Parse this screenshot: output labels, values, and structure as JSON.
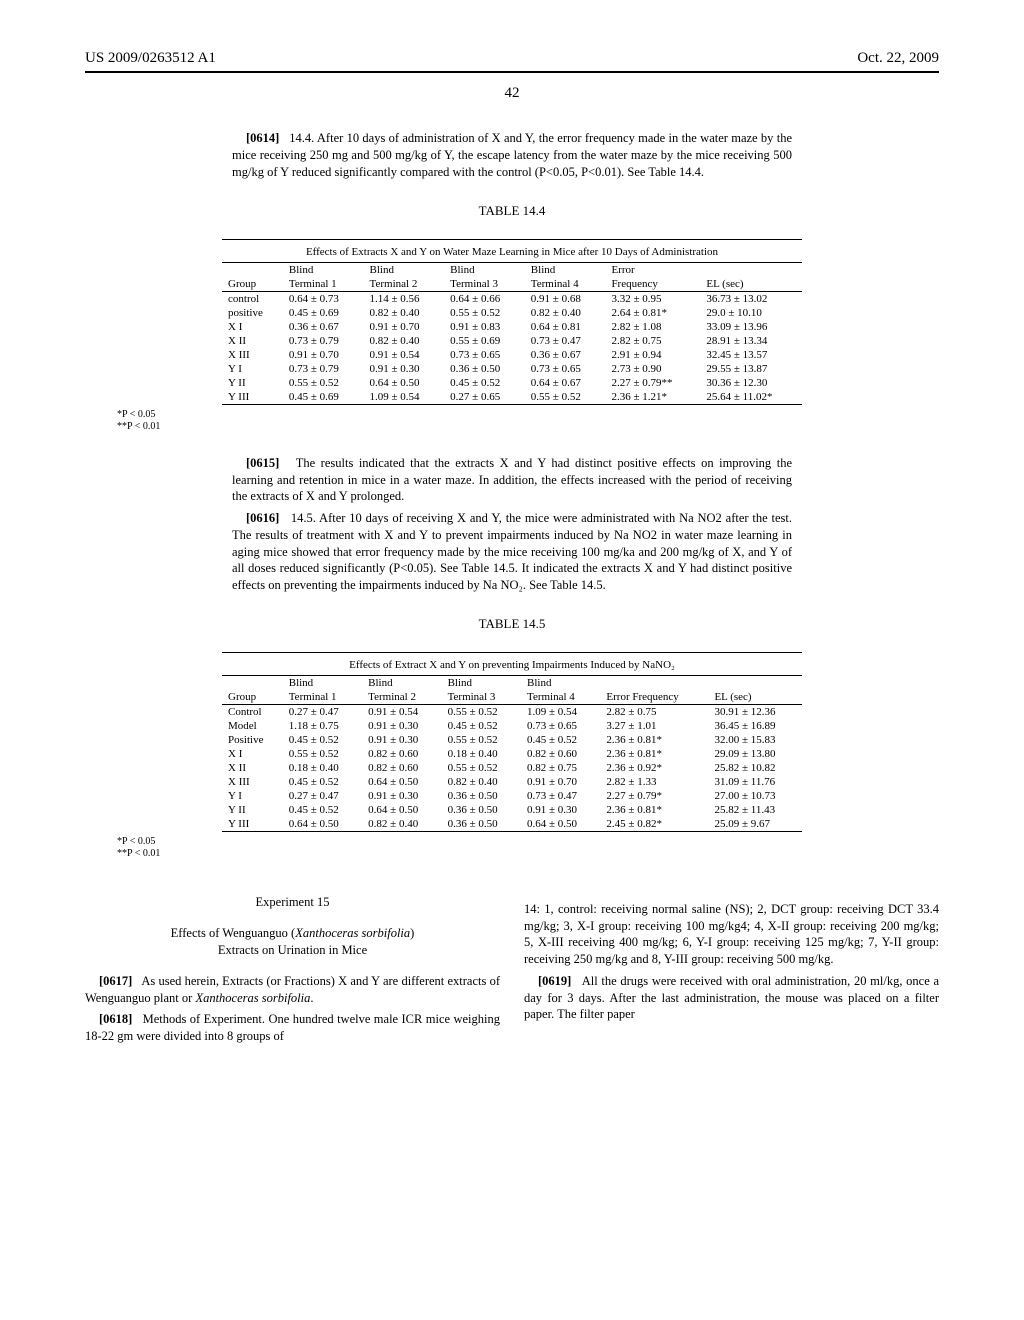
{
  "header": {
    "left": "US 2009/0263512 A1",
    "right": "Oct. 22, 2009"
  },
  "pagenum": "42",
  "para0614": {
    "num": "[0614]",
    "text": "14.4. After 10 days of administration of X and Y, the error frequency made in the water maze by the mice receiving 250 mg and 500 mg/kg of Y, the escape latency from the water maze by the mice receiving 500 mg/kg of Y reduced significantly compared with the control (P<0.05, P<0.01). See Table 14.4."
  },
  "table144": {
    "caption": "TABLE 14.4",
    "title": "Effects of Extracts X and Y on Water Maze Learning in Mice after 10 Days of Administration",
    "columns": [
      "Group",
      "Blind Terminal 1",
      "Blind Terminal 2",
      "Blind Terminal 3",
      "Blind Terminal 4",
      "Error Frequency",
      "EL (sec)"
    ],
    "rows": [
      [
        "control",
        "0.64 ± 0.73",
        "1.14 ± 0.56",
        "0.64 ± 0.66",
        "0.91 ± 0.68",
        "3.32 ± 0.95",
        "36.73 ± 13.02"
      ],
      [
        "positive",
        "0.45 ± 0.69",
        "0.82 ± 0.40",
        "0.55 ± 0.52",
        "0.82 ± 0.40",
        "2.64 ± 0.81*",
        "29.0 ± 10.10"
      ],
      [
        "X I",
        "0.36 ± 0.67",
        "0.91 ± 0.70",
        "0.91 ± 0.83",
        "0.64 ± 0.81",
        "2.82 ± 1.08",
        "33.09 ± 13.96"
      ],
      [
        "X II",
        "0.73 ± 0.79",
        "0.82 ± 0.40",
        "0.55 ± 0.69",
        "0.73 ± 0.47",
        "2.82 ± 0.75",
        "28.91 ± 13.34"
      ],
      [
        "X III",
        "0.91 ± 0.70",
        "0.91 ± 0.54",
        "0.73 ± 0.65",
        "0.36 ± 0.67",
        "2.91 ± 0.94",
        "32.45 ± 13.57"
      ],
      [
        "Y I",
        "0.73 ± 0.79",
        "0.91 ± 0.30",
        "0.36 ± 0.50",
        "0.73 ± 0.65",
        "2.73 ± 0.90",
        "29.55 ± 13.87"
      ],
      [
        "Y II",
        "0.55 ± 0.52",
        "0.64 ± 0.50",
        "0.45 ± 0.52",
        "0.64 ± 0.67",
        "2.27 ± 0.79**",
        "30.36 ± 12.30"
      ],
      [
        "Y III",
        "0.45 ± 0.69",
        "1.09 ± 0.54",
        "0.27 ± 0.65",
        "0.55 ± 0.52",
        "2.36 ± 1.21*",
        "25.64 ± 11.02*"
      ]
    ],
    "footnotes": [
      "*P < 0.05",
      "**P < 0.01"
    ]
  },
  "para0615": {
    "num": "[0615]",
    "text": "The results indicated that the extracts X and Y had distinct positive effects on improving the learning and retention in mice in a water maze. In addition, the effects increased with the period of receiving the extracts of X and Y prolonged."
  },
  "para0616": {
    "num": "[0616]",
    "text": "14.5. After 10 days of receiving X and Y, the mice were administrated with Na NO2 after the test. The results of treatment with X and Y to prevent impairments induced by Na NO2 in water maze learning in aging mice showed that error frequency made by the mice receiving 100 mg/ka and 200 mg/kg of X, and Y of all doses reduced significantly (P<0.05). See Table 14.5. It indicated the extracts X and Y had distinct positive effects on preventing the impairments induced by Na NO₂. See Table 14.5."
  },
  "table145": {
    "caption": "TABLE 14.5",
    "title": "Effects of Extract X and Y on preventing Impairments Induced by NaNO₂",
    "columns": [
      "Group",
      "Blind Terminal 1",
      "Blind Terminal 2",
      "Blind Terminal 3",
      "Blind Terminal 4",
      "Error Frequency",
      "EL (sec)"
    ],
    "rows": [
      [
        "Control",
        "0.27 ± 0.47",
        "0.91 ± 0.54",
        "0.55 ± 0.52",
        "1.09 ± 0.54",
        "2.82 ± 0.75",
        "30.91 ± 12.36"
      ],
      [
        "Model",
        "1.18 ± 0.75",
        "0.91 ± 0.30",
        "0.45 ± 0.52",
        "0.73 ± 0.65",
        "3.27 ± 1.01",
        "36.45 ± 16.89"
      ],
      [
        "Positive",
        "0.45 ± 0.52",
        "0.91 ± 0.30",
        "0.55 ± 0.52",
        "0.45 ± 0.52",
        "2.36 ± 0.81*",
        "32.00 ± 15.83"
      ],
      [
        "X I",
        "0.55 ± 0.52",
        "0.82 ± 0.60",
        "0.18 ± 0.40",
        "0.82 ± 0.60",
        "2.36 ± 0.81*",
        "29.09 ± 13.80"
      ],
      [
        "X II",
        "0.18 ± 0.40",
        "0.82 ± 0.60",
        "0.55 ± 0.52",
        "0.82 ± 0.75",
        "2.36 ± 0.92*",
        "25.82 ± 10.82"
      ],
      [
        "X III",
        "0.45 ± 0.52",
        "0.64 ± 0.50",
        "0.82 ± 0.40",
        "0.91 ± 0.70",
        "2.82 ± 1.33",
        "31.09 ± 11.76"
      ],
      [
        "Y I",
        "0.27 ± 0.47",
        "0.91 ± 0.30",
        "0.36 ± 0.50",
        "0.73 ± 0.47",
        "2.27 ± 0.79*",
        "27.00 ± 10.73"
      ],
      [
        "Y II",
        "0.45 ± 0.52",
        "0.64 ± 0.50",
        "0.36 ± 0.50",
        "0.91 ± 0.30",
        "2.36 ± 0.81*",
        "25.82 ± 11.43"
      ],
      [
        "Y III",
        "0.64 ± 0.50",
        "0.82 ± 0.40",
        "0.36 ± 0.50",
        "0.64 ± 0.50",
        "2.45 ± 0.82*",
        "25.09 ± 9.67"
      ]
    ],
    "footnotes": [
      "*P < 0.05",
      "**P < 0.01"
    ]
  },
  "experiment15": {
    "heading": "Experiment 15",
    "subheading": "Effects of Wenguanguo (Xanthoceras sorbifolia) Extracts on Urination in Mice"
  },
  "para0617": {
    "num": "[0617]",
    "text": "As used herein, Extracts (or Fractions) X and Y are different extracts of Wenguanguo plant or Xanthoceras sorbifolia."
  },
  "para0618": {
    "num": "[0618]",
    "text": "Methods of Experiment. One hundred twelve male ICR mice weighing 18-22 gm were divided into 8 groups of"
  },
  "col2text": "14: 1, control: receiving normal saline (NS); 2, DCT group: receiving DCT 33.4 mg/kg; 3, X-I group: receiving 100 mg/kg4; 4, X-II group: receiving 200 mg/kg; 5, X-III receiving 400 mg/kg; 6, Y-I group: receiving 125 mg/kg; 7, Y-II group: receiving 250 mg/kg and 8, Y-III group: receiving 500 mg/kg.",
  "para0619": {
    "num": "[0619]",
    "text": "All the drugs were received with oral administration, 20 ml/kg, once a day for 3 days. After the last administration, the mouse was placed on a filter paper. The filter paper"
  }
}
